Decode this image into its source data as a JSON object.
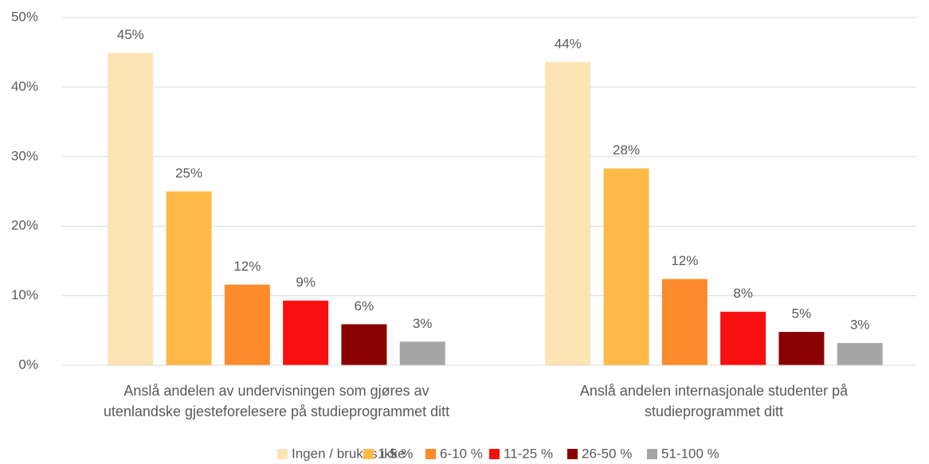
{
  "chart_data": {
    "type": "bar",
    "categories": [
      "Anslå andelen av undervisningen som gjøres av utenlandske gjesteforelesere på studieprogrammet ditt",
      "Anslå andelen internasjonale studenter på studieprogrammet ditt"
    ],
    "series": [
      {
        "name": "Ingen / brukes ikke",
        "color": "#fde4b5",
        "values": [
          44.9,
          43.6
        ],
        "value_labels": [
          "45%",
          "44%"
        ]
      },
      {
        "name": "1-5 %",
        "color": "#fdba48",
        "values": [
          25.0,
          28.3
        ],
        "value_labels": [
          "25%",
          "28%"
        ]
      },
      {
        "name": "6-10 %",
        "color": "#fd8a2b",
        "values": [
          11.6,
          12.4
        ],
        "value_labels": [
          "12%",
          "12%"
        ]
      },
      {
        "name": "11-25 %",
        "color": "#f80f0f",
        "values": [
          9.3,
          7.7
        ],
        "value_labels": [
          "9%",
          "8%"
        ]
      },
      {
        "name": "26-50 %",
        "color": "#8b0000",
        "values": [
          5.9,
          4.8
        ],
        "value_labels": [
          "6%",
          "5%"
        ]
      },
      {
        "name": "51-100 %",
        "color": "#a6a6a6",
        "values": [
          3.4,
          3.2
        ],
        "value_labels": [
          "3%",
          "3%"
        ]
      }
    ],
    "ylim": [
      0,
      50
    ],
    "yticks": [
      {
        "value": 0,
        "label": "0%"
      },
      {
        "value": 10,
        "label": "10%"
      },
      {
        "value": 20,
        "label": "20%"
      },
      {
        "value": 30,
        "label": "30%"
      },
      {
        "value": 40,
        "label": "40%"
      },
      {
        "value": 50,
        "label": "50%"
      }
    ],
    "grid": true,
    "legend": "bottom"
  }
}
